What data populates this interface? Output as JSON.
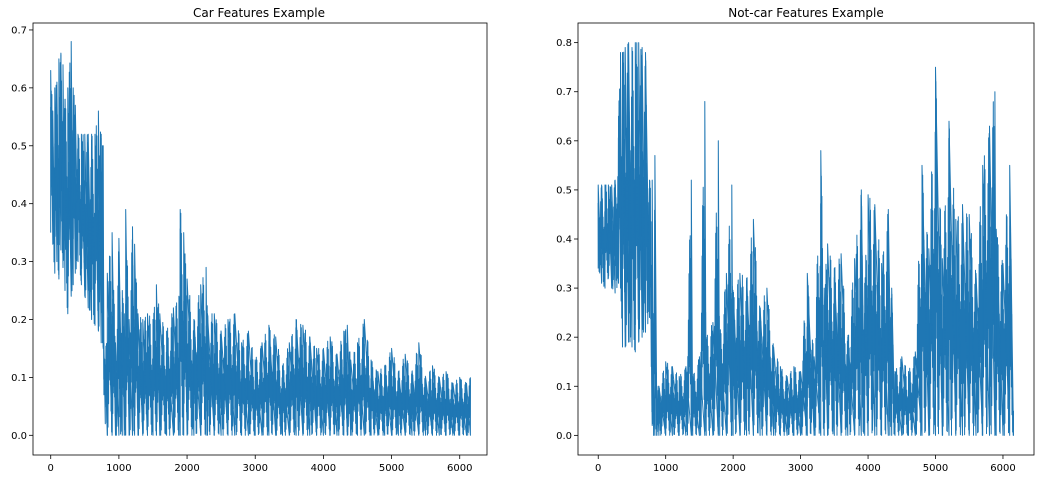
{
  "colors": {
    "series": "#1f77b4",
    "axis": "#000000",
    "background": "#ffffff"
  },
  "chart_data": [
    {
      "type": "line",
      "title": "Car Features Example",
      "xlabel": "",
      "ylabel": "",
      "xlim": [
        -260,
        6400
      ],
      "ylim": [
        -0.034,
        0.712
      ],
      "xticks": [
        0,
        1000,
        2000,
        3000,
        4000,
        5000,
        6000
      ],
      "yticks": [
        0.0,
        0.1,
        0.2,
        0.3,
        0.4,
        0.5,
        0.6,
        0.7
      ],
      "ytick_labels": [
        "0.0",
        "0.1",
        "0.2",
        "0.3",
        "0.4",
        "0.5",
        "0.6",
        "0.7"
      ],
      "grid": false,
      "series": [
        {
          "n_points": 6156,
          "x": [
            0,
            30,
            60,
            90,
            120,
            150,
            180,
            210,
            250,
            300,
            330,
            360,
            400,
            450,
            500,
            550,
            600,
            650,
            700,
            740,
            760,
            770,
            780,
            800,
            830,
            900,
            950,
            1000,
            1050,
            1080,
            1100,
            1150,
            1200,
            1230,
            1280,
            1350,
            1420,
            1500,
            1550,
            1600,
            1700,
            1800,
            1880,
            1900,
            1950,
            2000,
            2100,
            2200,
            2280,
            2300,
            2400,
            2500,
            2600,
            2700,
            2800,
            2900,
            3000,
            3100,
            3200,
            3300,
            3400,
            3500,
            3600,
            3700,
            3800,
            3900,
            4000,
            4100,
            4200,
            4300,
            4350,
            4400,
            4500,
            4600,
            4700,
            4800,
            4900,
            5000,
            5100,
            5200,
            5300,
            5400,
            5500,
            5600,
            5700,
            5800,
            5900,
            6000,
            6100,
            6156
          ],
          "y_low": [
            0.35,
            0.33,
            0.28,
            0.3,
            0.27,
            0.32,
            0.29,
            0.25,
            0.21,
            0.24,
            0.26,
            0.28,
            0.3,
            0.26,
            0.24,
            0.22,
            0.2,
            0.19,
            0.18,
            0.16,
            0.16,
            0.15,
            0.07,
            0.02,
            0.0,
            0.0,
            0.0,
            0.0,
            0.0,
            0.0,
            0.0,
            0.0,
            0.0,
            0.0,
            0.0,
            0.0,
            0.0,
            0.0,
            0.0,
            0.0,
            0.0,
            0.0,
            0.0,
            0.0,
            0.0,
            0.0,
            0.0,
            0.0,
            0.0,
            0.0,
            0.0,
            0.0,
            0.0,
            0.0,
            0.0,
            0.0,
            0.0,
            0.0,
            0.0,
            0.0,
            0.0,
            0.0,
            0.0,
            0.0,
            0.0,
            0.0,
            0.0,
            0.0,
            0.0,
            0.0,
            0.0,
            0.0,
            0.0,
            0.0,
            0.0,
            0.0,
            0.0,
            0.0,
            0.0,
            0.0,
            0.0,
            0.0,
            0.0,
            0.0,
            0.0,
            0.0,
            0.0,
            0.0,
            0.0,
            0.0
          ],
          "y_high": [
            0.63,
            0.56,
            0.6,
            0.61,
            0.65,
            0.66,
            0.64,
            0.58,
            0.6,
            0.68,
            0.6,
            0.57,
            0.52,
            0.52,
            0.52,
            0.52,
            0.52,
            0.52,
            0.56,
            0.52,
            0.5,
            0.5,
            0.16,
            0.12,
            0.28,
            0.35,
            0.16,
            0.34,
            0.25,
            0.21,
            0.39,
            0.2,
            0.36,
            0.33,
            0.21,
            0.2,
            0.21,
            0.2,
            0.26,
            0.21,
            0.18,
            0.22,
            0.24,
            0.39,
            0.35,
            0.27,
            0.2,
            0.26,
            0.29,
            0.21,
            0.21,
            0.18,
            0.2,
            0.21,
            0.16,
            0.18,
            0.13,
            0.16,
            0.19,
            0.17,
            0.12,
            0.16,
            0.2,
            0.19,
            0.17,
            0.15,
            0.15,
            0.17,
            0.14,
            0.18,
            0.19,
            0.13,
            0.16,
            0.2,
            0.13,
            0.11,
            0.12,
            0.15,
            0.11,
            0.14,
            0.11,
            0.16,
            0.1,
            0.12,
            0.1,
            0.11,
            0.09,
            0.1,
            0.09,
            0.1
          ]
        }
      ]
    },
    {
      "type": "line",
      "title": "Not-car Features Example",
      "xlabel": "",
      "ylabel": "",
      "xlim": [
        -300,
        6460
      ],
      "ylim": [
        -0.04,
        0.84
      ],
      "xticks": [
        0,
        1000,
        2000,
        3000,
        4000,
        5000,
        6000
      ],
      "yticks": [
        0.0,
        0.1,
        0.2,
        0.3,
        0.4,
        0.5,
        0.6,
        0.7,
        0.8
      ],
      "ytick_labels": [
        "0.0",
        "0.1",
        "0.2",
        "0.3",
        "0.4",
        "0.5",
        "0.6",
        "0.7",
        "0.8"
      ],
      "grid": false,
      "series": [
        {
          "n_points": 6156,
          "x": [
            0,
            50,
            100,
            150,
            200,
            250,
            300,
            330,
            360,
            400,
            450,
            500,
            550,
            600,
            650,
            700,
            760,
            800,
            820,
            840,
            870,
            900,
            1000,
            1100,
            1200,
            1300,
            1380,
            1400,
            1500,
            1580,
            1600,
            1700,
            1780,
            1800,
            1900,
            1980,
            2000,
            2100,
            2200,
            2300,
            2400,
            2500,
            2600,
            2700,
            2800,
            2900,
            3000,
            3100,
            3200,
            3300,
            3350,
            3400,
            3500,
            3600,
            3700,
            3800,
            3900,
            3950,
            4000,
            4100,
            4200,
            4300,
            4350,
            4400,
            4500,
            4600,
            4700,
            4800,
            4900,
            5000,
            5100,
            5200,
            5300,
            5400,
            5500,
            5600,
            5700,
            5800,
            5880,
            5900,
            6000,
            6100,
            6156
          ],
          "y_low": [
            0.34,
            0.31,
            0.3,
            0.32,
            0.3,
            0.29,
            0.31,
            0.3,
            0.18,
            0.18,
            0.19,
            0.18,
            0.17,
            0.19,
            0.2,
            0.21,
            0.24,
            0.02,
            0.0,
            0.0,
            0.0,
            0.0,
            0.0,
            0.0,
            0.0,
            0.0,
            0.0,
            0.0,
            0.0,
            0.0,
            0.0,
            0.0,
            0.0,
            0.0,
            0.0,
            0.0,
            0.0,
            0.0,
            0.0,
            0.0,
            0.0,
            0.0,
            0.0,
            0.0,
            0.0,
            0.0,
            0.0,
            0.0,
            0.0,
            0.0,
            0.0,
            0.0,
            0.0,
            0.0,
            0.0,
            0.0,
            0.0,
            0.0,
            0.0,
            0.0,
            0.0,
            0.0,
            0.0,
            0.0,
            0.0,
            0.0,
            0.0,
            0.0,
            0.0,
            0.0,
            0.0,
            0.0,
            0.0,
            0.0,
            0.0,
            0.0,
            0.0,
            0.0,
            0.0,
            0.0,
            0.0,
            0.0,
            0.0
          ],
          "y_high": [
            0.51,
            0.51,
            0.51,
            0.51,
            0.51,
            0.52,
            0.65,
            0.78,
            0.78,
            0.79,
            0.8,
            0.79,
            0.8,
            0.8,
            0.79,
            0.78,
            0.52,
            0.52,
            0.1,
            0.57,
            0.1,
            0.1,
            0.15,
            0.14,
            0.12,
            0.14,
            0.52,
            0.12,
            0.16,
            0.68,
            0.2,
            0.23,
            0.6,
            0.2,
            0.33,
            0.51,
            0.29,
            0.33,
            0.32,
            0.44,
            0.26,
            0.3,
            0.18,
            0.14,
            0.12,
            0.14,
            0.13,
            0.33,
            0.16,
            0.58,
            0.3,
            0.39,
            0.34,
            0.37,
            0.2,
            0.36,
            0.5,
            0.31,
            0.49,
            0.47,
            0.35,
            0.46,
            0.3,
            0.13,
            0.16,
            0.13,
            0.17,
            0.55,
            0.38,
            0.75,
            0.36,
            0.64,
            0.44,
            0.47,
            0.45,
            0.33,
            0.55,
            0.63,
            0.7,
            0.42,
            0.35,
            0.55,
            0.05
          ]
        }
      ]
    }
  ]
}
